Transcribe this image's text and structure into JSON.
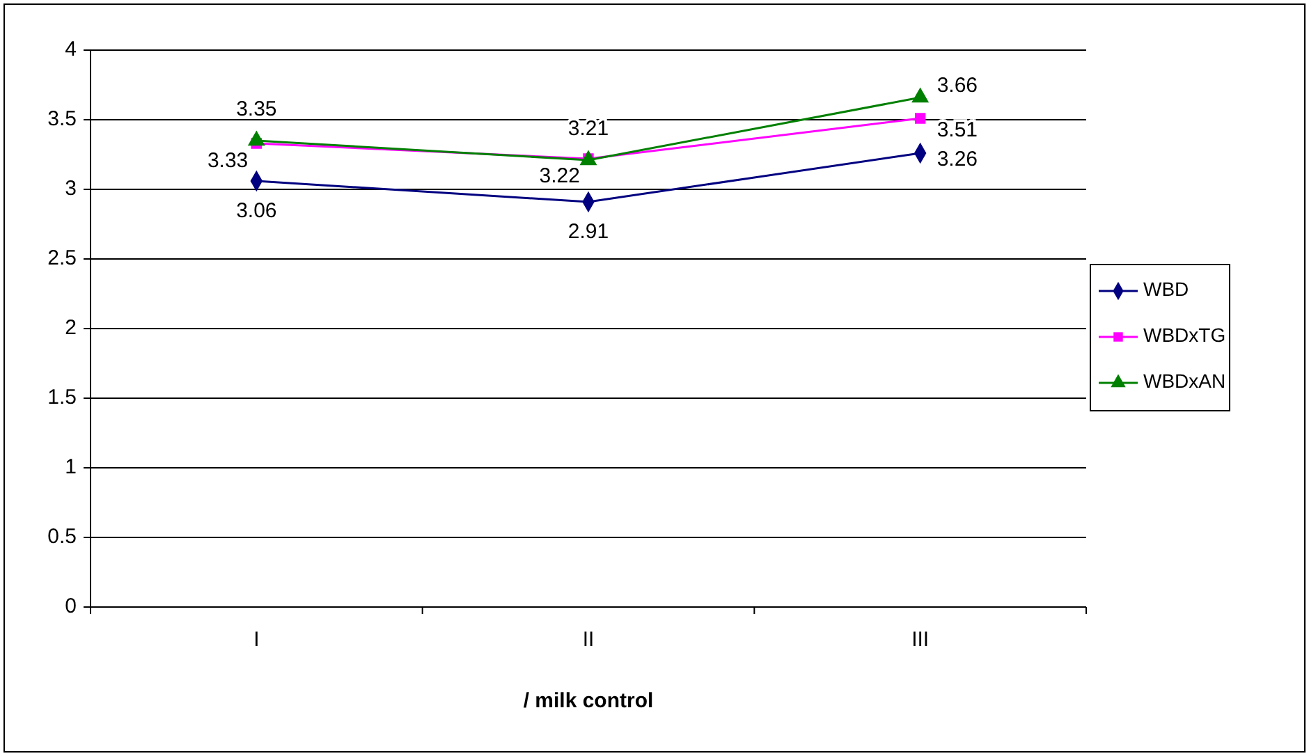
{
  "chart_data": {
    "type": "line",
    "xlabel": "/ milk control",
    "categories": [
      "I",
      "II",
      "III"
    ],
    "series": [
      {
        "name": "WBD",
        "color": "#000080",
        "marker": "diamond",
        "values": [
          3.06,
          2.91,
          3.26
        ]
      },
      {
        "name": "WBDxTG",
        "color": "#ff00ff",
        "marker": "square",
        "values": [
          3.33,
          3.22,
          3.51
        ]
      },
      {
        "name": "WBDxAN",
        "color": "#008000",
        "marker": "triangle",
        "values": [
          3.35,
          3.21,
          3.66
        ]
      }
    ],
    "ylim": [
      0,
      4
    ],
    "yticks": [
      0,
      0.5,
      1,
      1.5,
      2,
      2.5,
      3,
      3.5,
      4
    ],
    "grid": "y",
    "legend": "right",
    "data_labels": true
  }
}
